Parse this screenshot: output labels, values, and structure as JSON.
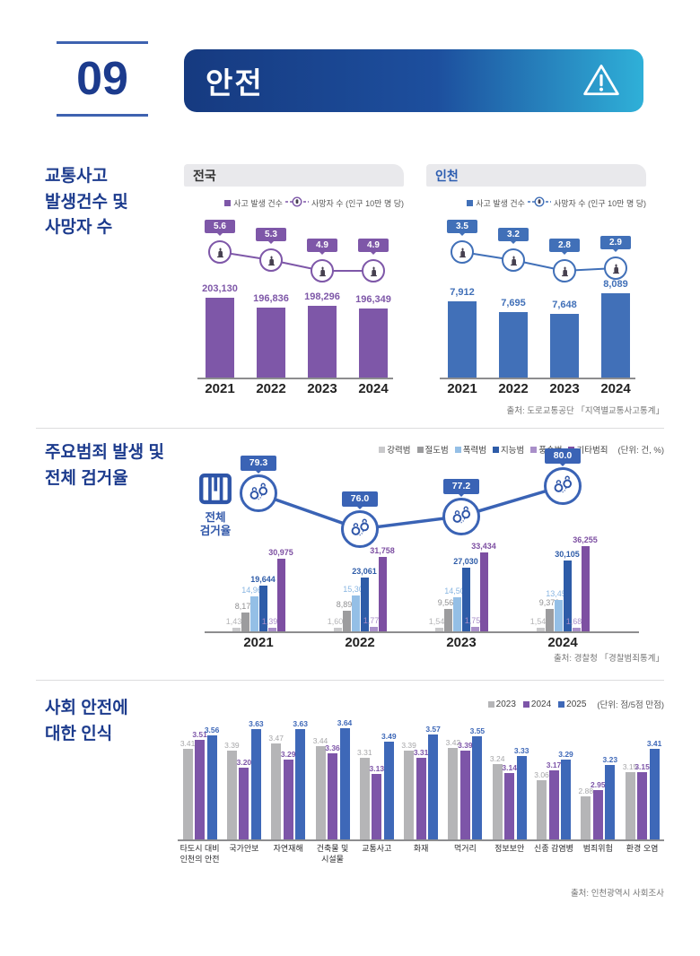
{
  "header": {
    "number": "09",
    "title": "안전",
    "icon": "warning-triangle-icon",
    "colors": {
      "brand_navy": "#1c3b8d",
      "gradient_start": "#163a80",
      "gradient_end": "#2fb0d8"
    }
  },
  "section_traffic": {
    "title_lines": [
      "교통사고",
      "발생건수 및",
      "사망자 수"
    ],
    "source": "출처: 도로교통공단 「지역별교통사고통계」"
  },
  "section_crime": {
    "title_lines": [
      "주요범죄 발생 및",
      "전체 검거율"
    ],
    "rate_label_lines": [
      "전체",
      "검거율"
    ],
    "unit": "(단위: 건, %)",
    "source": "출처: 경찰청 「경찰범죄통계」"
  },
  "section_perception": {
    "title_lines": [
      "사회 안전에",
      "대한 인식"
    ],
    "unit": "(단위: 점/5점 만점)",
    "source": "출처: 인천광역시 사회조사"
  },
  "chart_data": [
    {
      "id": "traffic-national",
      "type": "bar",
      "title": "전국",
      "title_color": "#333333",
      "color": "#7e57a8",
      "categories": [
        "2021",
        "2022",
        "2023",
        "2024"
      ],
      "series": [
        {
          "name": "사고 발생 건수",
          "type": "bar",
          "values": [
            203130,
            196836,
            198296,
            196349
          ],
          "labels": [
            "203,130",
            "196,836",
            "198,296",
            "196,349"
          ]
        },
        {
          "name": "사망자 수 (인구 10만 명 당)",
          "type": "line",
          "values": [
            5.6,
            5.3,
            4.9,
            4.9
          ]
        }
      ]
    },
    {
      "id": "traffic-incheon",
      "type": "bar",
      "title": "인천",
      "title_color": "#2b5cb0",
      "color": "#4170b8",
      "categories": [
        "2021",
        "2022",
        "2023",
        "2024"
      ],
      "series": [
        {
          "name": "사고 발생 건수",
          "type": "bar",
          "values": [
            7912,
            7695,
            7648,
            8089
          ],
          "labels": [
            "7,912",
            "7,695",
            "7,648",
            "8,089"
          ]
        },
        {
          "name": "사망자 수 (인구 10만 명 당)",
          "type": "line",
          "values": [
            3.5,
            3.2,
            2.8,
            2.9
          ]
        }
      ]
    },
    {
      "id": "crime",
      "type": "bar",
      "title": "주요범죄 발생 및 전체 검거율",
      "categories": [
        "2021",
        "2022",
        "2023",
        "2024"
      ],
      "line_color": "#3a63b5",
      "series": [
        {
          "name": "강력범",
          "type": "bar",
          "color": "#c9c9cb",
          "label_color": "#b4b4b6",
          "bold": false,
          "values": [
            1437,
            1601,
            1546,
            1548
          ],
          "labels": [
            "1,437",
            "1,601",
            "1,546",
            "1,548"
          ]
        },
        {
          "name": "절도범",
          "type": "bar",
          "color": "#9c9c9e",
          "label_color": "#8f8f91",
          "bold": false,
          "values": [
            8171,
            8893,
            9567,
            9373
          ],
          "labels": [
            "8,171",
            "8,893",
            "9,567",
            "9,373"
          ]
        },
        {
          "name": "폭력범",
          "type": "bar",
          "color": "#94bfe6",
          "label_color": "#89b6e2",
          "bold": false,
          "values": [
            14967,
            15305,
            14503,
            13456
          ],
          "labels": [
            "14,967",
            "15,305",
            "14,503",
            "13,456"
          ]
        },
        {
          "name": "지능범",
          "type": "bar",
          "color": "#2e5ca8",
          "label_color": "#2e5ca8",
          "bold": true,
          "values": [
            19644,
            23061,
            27030,
            30105
          ],
          "labels": [
            "19,644",
            "23,061",
            "27,030",
            "30,105"
          ]
        },
        {
          "name": "풍속범",
          "type": "bar",
          "color": "#a98fc9",
          "label_color": "#a98fc9",
          "bold": false,
          "values": [
            1390,
            1779,
            1751,
            1683
          ],
          "labels": [
            "1,390",
            "1,779",
            "1,751",
            "1,683"
          ]
        },
        {
          "name": "기타범죄",
          "type": "bar",
          "color": "#7d4fa2",
          "label_color": "#7d4fa2",
          "bold": true,
          "values": [
            30975,
            31758,
            33434,
            36255
          ],
          "labels": [
            "30,975",
            "31,758",
            "33,434",
            "36,255"
          ]
        },
        {
          "name": "전체 검거율",
          "type": "line",
          "color": "#3a63b5",
          "values": [
            79.3,
            76.0,
            77.2,
            80.0
          ]
        }
      ]
    },
    {
      "id": "perception",
      "type": "bar",
      "title": "사회 안전에 대한 인식",
      "categories": [
        "타도시 대비 인천의 안전",
        "국가안보",
        "자연재해",
        "건축물 및 시설물",
        "교통사고",
        "화재",
        "먹거리",
        "정보보안",
        "신종 감염병",
        "범죄위험",
        "환경 오염"
      ],
      "category_lines": [
        [
          "타도시 대비",
          "인천의 안전"
        ],
        [
          "국가안보"
        ],
        [
          "자연재해"
        ],
        [
          "건축물 및",
          "시설물"
        ],
        [
          "교통사고"
        ],
        [
          "화재"
        ],
        [
          "먹거리"
        ],
        [
          "정보보안"
        ],
        [
          "신종 감염병"
        ],
        [
          "범죄위험"
        ],
        [
          "환경 오염"
        ]
      ],
      "ylim": [
        0,
        5
      ],
      "series": [
        {
          "name": "2023",
          "color": "#b5b5b7",
          "label_color": "#a6a6a8",
          "bold": false,
          "values": [
            3.41,
            3.39,
            3.47,
            3.44,
            3.31,
            3.39,
            3.42,
            3.24,
            3.06,
            2.88,
            3.15
          ]
        },
        {
          "name": "2024",
          "color": "#7d55a8",
          "label_color": "#7d55a8",
          "bold": true,
          "values": [
            3.51,
            3.2,
            3.29,
            3.36,
            3.13,
            3.31,
            3.39,
            3.14,
            3.17,
            2.95,
            3.15
          ]
        },
        {
          "name": "2025",
          "color": "#3e68b8",
          "label_color": "#3e68b8",
          "bold": true,
          "values": [
            3.56,
            3.63,
            3.63,
            3.64,
            3.49,
            3.57,
            3.55,
            3.33,
            3.29,
            3.23,
            3.41
          ]
        }
      ]
    }
  ]
}
